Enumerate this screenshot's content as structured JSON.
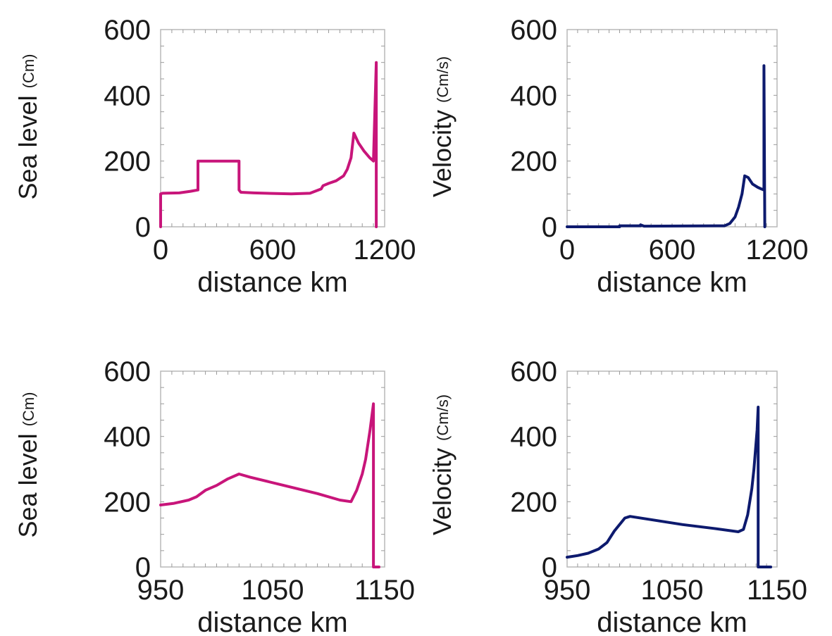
{
  "chart_data": [
    {
      "type": "line",
      "id": "top-left",
      "xlabel": "distance km",
      "ylabel": "Sea level",
      "ylabel_unit": "(Cm)",
      "xlim": [
        0,
        1200
      ],
      "ylim": [
        0,
        600
      ],
      "xticks": [
        "0",
        "600",
        "1200"
      ],
      "yticks": [
        "0",
        "200",
        "400",
        "600"
      ],
      "color": "#c8157a",
      "series": [
        {
          "x": [
            0,
            0,
            10,
            100,
            160,
            200,
            200,
            420,
            420,
            430,
            500,
            700,
            800,
            860,
            870,
            900,
            940,
            980,
            1000,
            1020,
            1035,
            1060,
            1090,
            1120,
            1130,
            1140,
            1155,
            1155
          ],
          "y": [
            0,
            100,
            102,
            103,
            108,
            112,
            200,
            200,
            112,
            105,
            103,
            100,
            102,
            115,
            125,
            132,
            140,
            155,
            175,
            210,
            285,
            255,
            230,
            210,
            205,
            200,
            500,
            0
          ]
        }
      ]
    },
    {
      "type": "line",
      "id": "top-right",
      "xlabel": "distance km",
      "ylabel": "Velocity",
      "ylabel_unit": "(Cm/s)",
      "xlim": [
        0,
        1200
      ],
      "ylim": [
        0,
        600
      ],
      "xticks": [
        "0",
        "600",
        "1200"
      ],
      "yticks": [
        "0",
        "200",
        "400",
        "600"
      ],
      "color": "#0d1a6e",
      "series": [
        {
          "x": [
            0,
            300,
            300,
            420,
            420,
            440,
            900,
            930,
            960,
            980,
            1000,
            1015,
            1035,
            1060,
            1090,
            1110,
            1125,
            1125,
            1130
          ],
          "y": [
            0,
            0,
            3,
            3,
            6,
            2,
            3,
            10,
            30,
            60,
            100,
            155,
            150,
            130,
            120,
            115,
            112,
            490,
            0
          ]
        }
      ]
    },
    {
      "type": "line",
      "id": "bottom-left",
      "xlabel": "distance km",
      "ylabel": "Sea level",
      "ylabel_unit": "(Cm)",
      "xlim": [
        950,
        1150
      ],
      "ylim": [
        0,
        600
      ],
      "xticks": [
        "950",
        "1050",
        "1150"
      ],
      "yticks": [
        "0",
        "200",
        "400",
        "600"
      ],
      "color": "#c8157a",
      "series": [
        {
          "x": [
            950,
            962,
            975,
            982,
            990,
            1000,
            1010,
            1020,
            1030,
            1060,
            1090,
            1110,
            1120,
            1125,
            1130,
            1133,
            1137,
            1140,
            1140,
            1145
          ],
          "y": [
            190,
            195,
            205,
            215,
            235,
            250,
            270,
            285,
            275,
            250,
            225,
            205,
            200,
            235,
            285,
            330,
            420,
            500,
            0,
            0
          ]
        }
      ]
    },
    {
      "type": "line",
      "id": "bottom-right",
      "xlabel": "distance km",
      "ylabel": "Velocity",
      "ylabel_unit": "(Cm/s)",
      "xlim": [
        950,
        1150
      ],
      "ylim": [
        0,
        600
      ],
      "xticks": [
        "950",
        "1050",
        "1150"
      ],
      "yticks": [
        "0",
        "200",
        "400",
        "600"
      ],
      "color": "#0d1a6e",
      "series": [
        {
          "x": [
            950,
            960,
            970,
            980,
            988,
            995,
            1005,
            1010,
            1030,
            1060,
            1090,
            1113,
            1118,
            1122,
            1126,
            1128,
            1131,
            1132,
            1132,
            1138,
            1144
          ],
          "y": [
            30,
            35,
            42,
            55,
            75,
            110,
            150,
            155,
            145,
            130,
            118,
            108,
            115,
            160,
            240,
            300,
            420,
            490,
            0,
            0,
            0
          ]
        }
      ]
    }
  ]
}
